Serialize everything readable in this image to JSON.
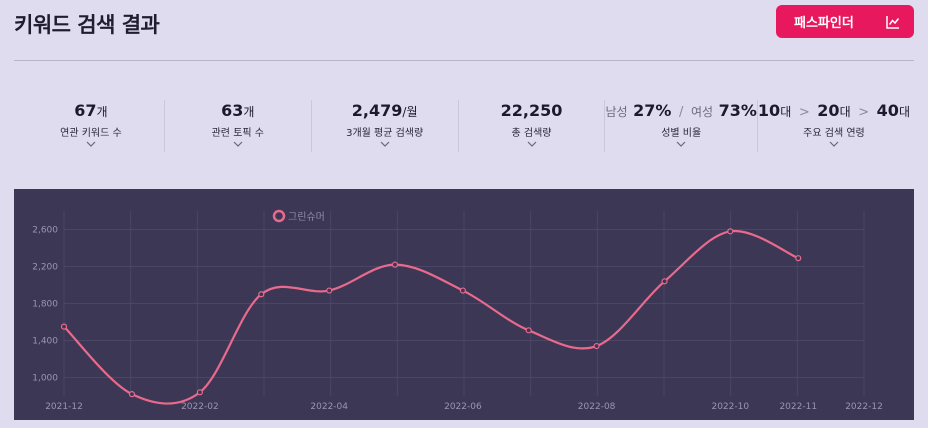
{
  "header": {
    "title": "키워드 검색 결과",
    "pathfinder_label": "패스파인더"
  },
  "stats": [
    {
      "value": "67",
      "unit": "개",
      "label": "연관 키워드 수"
    },
    {
      "value": "63",
      "unit": "개",
      "label": "관련 토픽 수"
    },
    {
      "value": "2,479",
      "unit": "/월",
      "label": "3개월 평균 검색량"
    },
    {
      "value": "22,250",
      "unit": "",
      "label": "총 검색량"
    },
    {
      "male_label": "남성",
      "male_value": "27%",
      "female_label": "여성",
      "female_value": "73%",
      "separator": "/",
      "label": "성별 비율"
    },
    {
      "ages": [
        "10",
        "20",
        "40"
      ],
      "age_unit": "대",
      "separator": ">",
      "label": "주요 검색 연령"
    }
  ],
  "colors": {
    "accent": "#e8185f",
    "line": "#e96a8c",
    "chart_bg": "#3d3756"
  },
  "chart_data": {
    "type": "line",
    "title": "",
    "legend": "그린슈머",
    "legend_position": "top-left",
    "x": [
      "2021-12",
      "2022-01",
      "2022-02",
      "2022-03",
      "2022-04",
      "2022-05",
      "2022-06",
      "2022-07",
      "2022-08",
      "2022-09",
      "2022-10",
      "2022-11"
    ],
    "x_tick_labels": [
      "2021-12",
      "2022-02",
      "2022-04",
      "2022-06",
      "2022-08",
      "2022-10",
      "2022-11",
      "2022-12"
    ],
    "series": [
      {
        "name": "그린슈머",
        "values": [
          1550,
          820,
          840,
          1900,
          1940,
          2220,
          1940,
          1510,
          1340,
          2040,
          2580,
          2290
        ]
      }
    ],
    "y_ticks": [
      1000,
      1400,
      1800,
      2200,
      2600
    ],
    "y_tick_labels": [
      "1,000",
      "1,400",
      "1,800",
      "2,200",
      "2,600"
    ],
    "ylim": [
      800,
      2800
    ],
    "xlabel": "",
    "ylabel": "",
    "grid": true
  }
}
